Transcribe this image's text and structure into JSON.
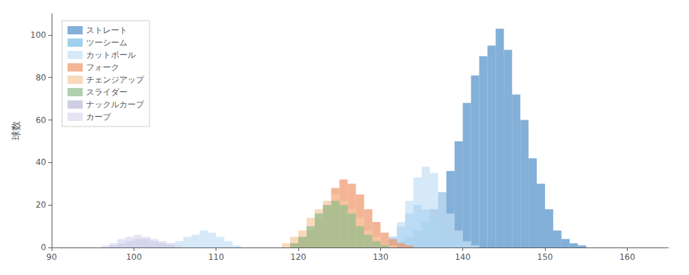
{
  "chart_data": {
    "type": "histogram",
    "ylabel": "球数",
    "xlim": [
      90,
      165
    ],
    "ylim": [
      0,
      110
    ],
    "xticks": [
      90,
      100,
      110,
      120,
      130,
      140,
      150,
      160
    ],
    "yticks": [
      0,
      20,
      40,
      60,
      80,
      100
    ],
    "grid": false,
    "legend": "upper left",
    "bins": [
      90,
      91,
      92,
      93,
      94,
      95,
      96,
      97,
      98,
      99,
      100,
      101,
      102,
      103,
      104,
      105,
      106,
      107,
      108,
      109,
      110,
      111,
      112,
      113,
      114,
      115,
      116,
      117,
      118,
      119,
      120,
      121,
      122,
      123,
      124,
      125,
      126,
      127,
      128,
      129,
      130,
      131,
      132,
      133,
      134,
      135,
      136,
      137,
      138,
      139,
      140,
      141,
      142,
      143,
      144,
      145,
      146,
      147,
      148,
      149,
      150,
      151,
      152,
      153,
      154,
      155,
      156,
      157,
      158,
      159,
      160,
      161,
      162,
      163,
      164,
      165
    ],
    "series": [
      {
        "name": "ストレート",
        "color": "#4e8fc7",
        "values": [
          0,
          0,
          0,
          0,
          0,
          0,
          0,
          0,
          0,
          0,
          0,
          0,
          0,
          0,
          0,
          0,
          0,
          0,
          0,
          0,
          0,
          0,
          0,
          0,
          0,
          0,
          0,
          0,
          0,
          0,
          0,
          0,
          0,
          0,
          0,
          0,
          0,
          0,
          0,
          0,
          1,
          2,
          3,
          5,
          8,
          12,
          18,
          26,
          36,
          50,
          68,
          81,
          90,
          95,
          103,
          93,
          72,
          60,
          42,
          30,
          18,
          8,
          4,
          2,
          1,
          0,
          0,
          0,
          0,
          0,
          0,
          0,
          0,
          0,
          0
        ]
      },
      {
        "name": "ツーシーム",
        "color": "#7bbde8",
        "values": [
          0,
          0,
          0,
          0,
          0,
          0,
          0,
          0,
          0,
          0,
          0,
          0,
          0,
          0,
          0,
          0,
          0,
          0,
          0,
          0,
          0,
          0,
          0,
          0,
          0,
          0,
          0,
          0,
          0,
          0,
          0,
          0,
          0,
          0,
          0,
          0,
          0,
          0,
          0,
          0,
          2,
          5,
          10,
          16,
          20,
          18,
          14,
          10,
          6,
          3,
          1,
          0,
          0,
          0,
          0,
          0,
          0,
          0,
          0,
          0,
          0,
          0,
          0,
          0,
          0,
          0,
          0,
          0,
          0,
          0,
          0,
          0,
          0,
          0,
          0
        ]
      },
      {
        "name": "カットボール",
        "color": "#c5dff5",
        "values": [
          0,
          0,
          0,
          0,
          0,
          0,
          0,
          0,
          0,
          0,
          0,
          0,
          0,
          1,
          2,
          3,
          5,
          6,
          8,
          7,
          5,
          3,
          1,
          0,
          0,
          0,
          0,
          0,
          0,
          0,
          0,
          0,
          0,
          0,
          0,
          0,
          0,
          0,
          0,
          0,
          1,
          5,
          12,
          22,
          33,
          38,
          35,
          26,
          16,
          8,
          3,
          1,
          0,
          0,
          0,
          0,
          0,
          0,
          0,
          0,
          0,
          0,
          0,
          0,
          0,
          0,
          0,
          0,
          0,
          0,
          0,
          0,
          0,
          0,
          0
        ]
      },
      {
        "name": "フォーク",
        "color": "#f0956a",
        "values": [
          0,
          0,
          0,
          0,
          0,
          0,
          0,
          0,
          0,
          0,
          0,
          0,
          0,
          0,
          0,
          0,
          0,
          0,
          0,
          0,
          0,
          0,
          0,
          0,
          0,
          0,
          0,
          0,
          0,
          2,
          5,
          8,
          14,
          20,
          28,
          32,
          30,
          25,
          18,
          12,
          7,
          4,
          2,
          1,
          0,
          0,
          0,
          0,
          0,
          0,
          0,
          0,
          0,
          0,
          0,
          0,
          0,
          0,
          0,
          0,
          0,
          0,
          0,
          0,
          0,
          0,
          0,
          0,
          0,
          0,
          0,
          0,
          0,
          0,
          0
        ]
      },
      {
        "name": "チェンジアップ",
        "color": "#f5c9a0",
        "values": [
          0,
          0,
          0,
          0,
          0,
          0,
          0,
          0,
          0,
          0,
          0,
          0,
          0,
          0,
          0,
          0,
          0,
          0,
          0,
          0,
          0,
          0,
          0,
          0,
          0,
          0,
          0,
          0,
          2,
          5,
          8,
          14,
          18,
          22,
          25,
          22,
          18,
          14,
          8,
          5,
          2,
          1,
          0,
          0,
          0,
          0,
          0,
          0,
          0,
          0,
          0,
          0,
          0,
          0,
          0,
          0,
          0,
          0,
          0,
          0,
          0,
          0,
          0,
          0,
          0,
          0,
          0,
          0,
          0,
          0,
          0,
          0,
          0,
          0,
          0
        ]
      },
      {
        "name": "スライダー",
        "color": "#90bc8c",
        "values": [
          0,
          0,
          0,
          0,
          0,
          0,
          0,
          0,
          0,
          0,
          0,
          0,
          0,
          0,
          0,
          0,
          0,
          0,
          0,
          0,
          0,
          0,
          0,
          0,
          0,
          0,
          0,
          0,
          0,
          2,
          5,
          10,
          16,
          20,
          22,
          20,
          16,
          10,
          6,
          3,
          1,
          0,
          0,
          0,
          0,
          0,
          0,
          0,
          0,
          0,
          0,
          0,
          0,
          0,
          0,
          0,
          0,
          0,
          0,
          0,
          0,
          0,
          0,
          0,
          0,
          0,
          0,
          0,
          0,
          0,
          0,
          0,
          0,
          0,
          0
        ]
      },
      {
        "name": "ナックルカーブ",
        "color": "#b8b8d8",
        "values": [
          0,
          0,
          0,
          0,
          0,
          0,
          0,
          1,
          2,
          3,
          4,
          4,
          3,
          2,
          1,
          0,
          0,
          0,
          0,
          0,
          0,
          0,
          0,
          0,
          0,
          0,
          0,
          0,
          0,
          0,
          0,
          0,
          0,
          0,
          0,
          0,
          0,
          0,
          0,
          0,
          0,
          0,
          0,
          0,
          0,
          0,
          0,
          0,
          0,
          0,
          0,
          0,
          0,
          0,
          0,
          0,
          0,
          0,
          0,
          0,
          0,
          0,
          0,
          0,
          0,
          0,
          0,
          0,
          0,
          0,
          0,
          0,
          0,
          0,
          0
        ]
      },
      {
        "name": "カーブ",
        "color": "#d8d8f0",
        "values": [
          0,
          0,
          0,
          0,
          0,
          0,
          1,
          2,
          4,
          5,
          6,
          5,
          4,
          3,
          2,
          1,
          0,
          0,
          0,
          0,
          0,
          0,
          0,
          0,
          0,
          0,
          0,
          0,
          0,
          0,
          0,
          0,
          0,
          0,
          0,
          0,
          0,
          0,
          0,
          0,
          0,
          0,
          0,
          0,
          0,
          0,
          0,
          0,
          0,
          0,
          0,
          0,
          0,
          0,
          0,
          0,
          0,
          0,
          0,
          0,
          0,
          0,
          0,
          0,
          0,
          0,
          0,
          0,
          0,
          0,
          0,
          0,
          0,
          0,
          0
        ]
      }
    ]
  }
}
